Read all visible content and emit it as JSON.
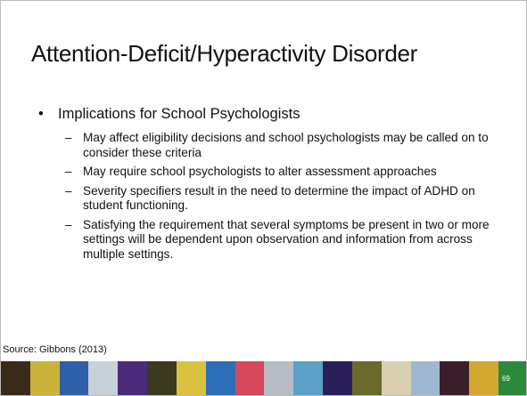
{
  "slide": {
    "title": "Attention-Deficit/Hyperactivity Disorder",
    "bullet": "Implications for School Psychologists",
    "sub_bullets": [
      "May affect eligibility decisions and school psychologists may be called on to consider these criteria",
      "May require school psychologists to alter assessment approaches",
      "Severity specifiers result in the need to determine the impact of ADHD on student functioning.",
      "Satisfying the requirement that several symptoms be present in two or more settings will be dependent upon observation and information from across multiple settings."
    ],
    "source": "Source: Gibbons (2013)",
    "page_number": "69"
  }
}
